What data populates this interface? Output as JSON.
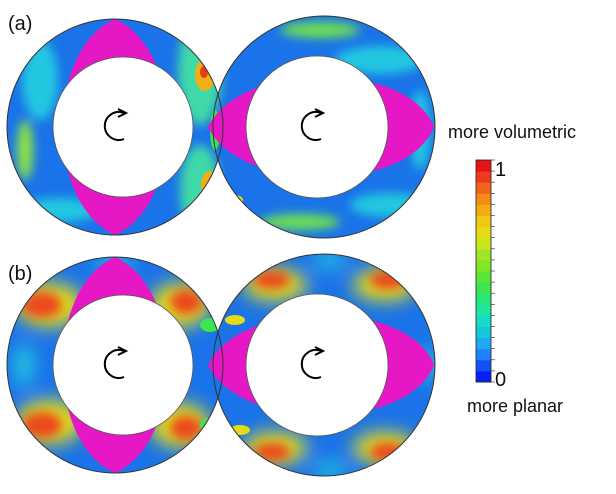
{
  "panels": [
    {
      "label": "(a)"
    },
    {
      "label": "(b)"
    }
  ],
  "legend": {
    "title_top": "more volumetric",
    "title_bottom": "more planar",
    "max_label": "1",
    "min_label": "0",
    "levels": 20,
    "colors": [
      "#0a1ff2",
      "#1450fa",
      "#1e82fa",
      "#1eaaf0",
      "#14c8dc",
      "#14dcc8",
      "#1ee6a0",
      "#28e678",
      "#3ce650",
      "#5ae632",
      "#82e628",
      "#a0e628",
      "#c8e61e",
      "#e6dc14",
      "#f0c814",
      "#f5aa14",
      "#f58c14",
      "#f0641e",
      "#eb3c1e",
      "#e61414"
    ]
  },
  "colors": {
    "rotor": "#e617c4",
    "hole": "#ffffff",
    "outline": "#333333",
    "blue": "#1a73e8"
  },
  "icons": {
    "rotation": "clockwise-arc-arrow-icon"
  }
}
